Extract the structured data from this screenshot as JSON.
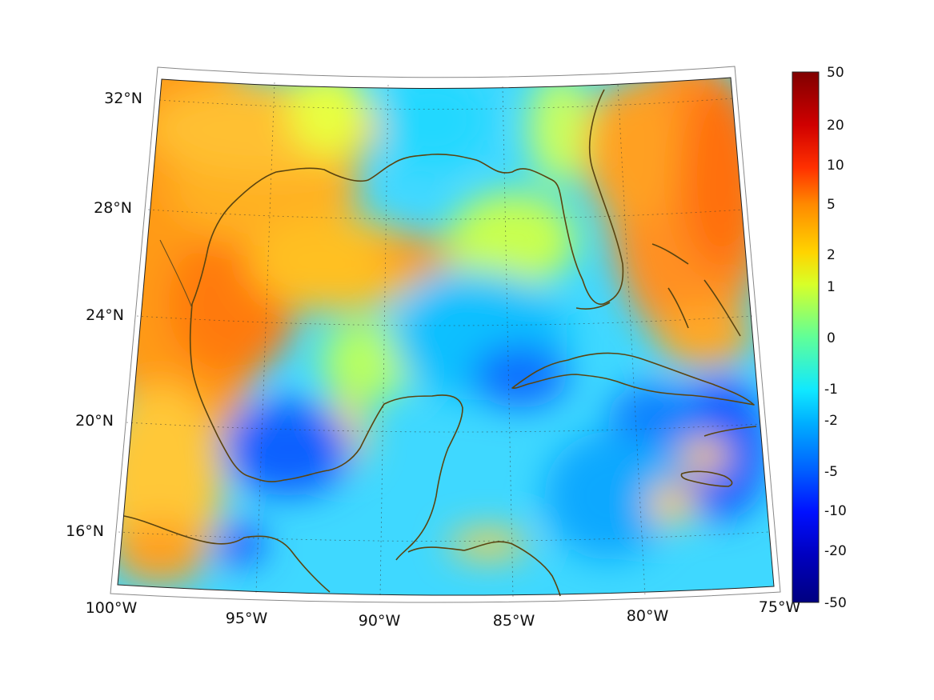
{
  "map": {
    "lon_labels": [
      "100°W",
      "95°W",
      "90°W",
      "85°W",
      "80°W",
      "75°W"
    ],
    "lat_labels": [
      "32°N",
      "28°N",
      "24°N",
      "20°N",
      "16°N"
    ],
    "lon_range": [
      -100,
      -75
    ],
    "lat_range": [
      14,
      33
    ]
  },
  "colorbar": {
    "tick_labels": [
      "50",
      "20",
      "10",
      "5",
      "2",
      "1",
      "0",
      "-1",
      "-2",
      "-5",
      "-10",
      "-20",
      "-50"
    ],
    "colors": [
      "#800000",
      "#d00000",
      "#ff3000",
      "#ff8a00",
      "#ffd400",
      "#d8ff28",
      "#60ff98",
      "#10e8ff",
      "#00b0ff",
      "#0060ff",
      "#0010ff",
      "#0000c0",
      "#000080"
    ]
  },
  "colors": {
    "coastline": "#5a4410",
    "warm": "#ff9a10",
    "cool": "#20c8ff",
    "deep": "#0a40ff"
  }
}
